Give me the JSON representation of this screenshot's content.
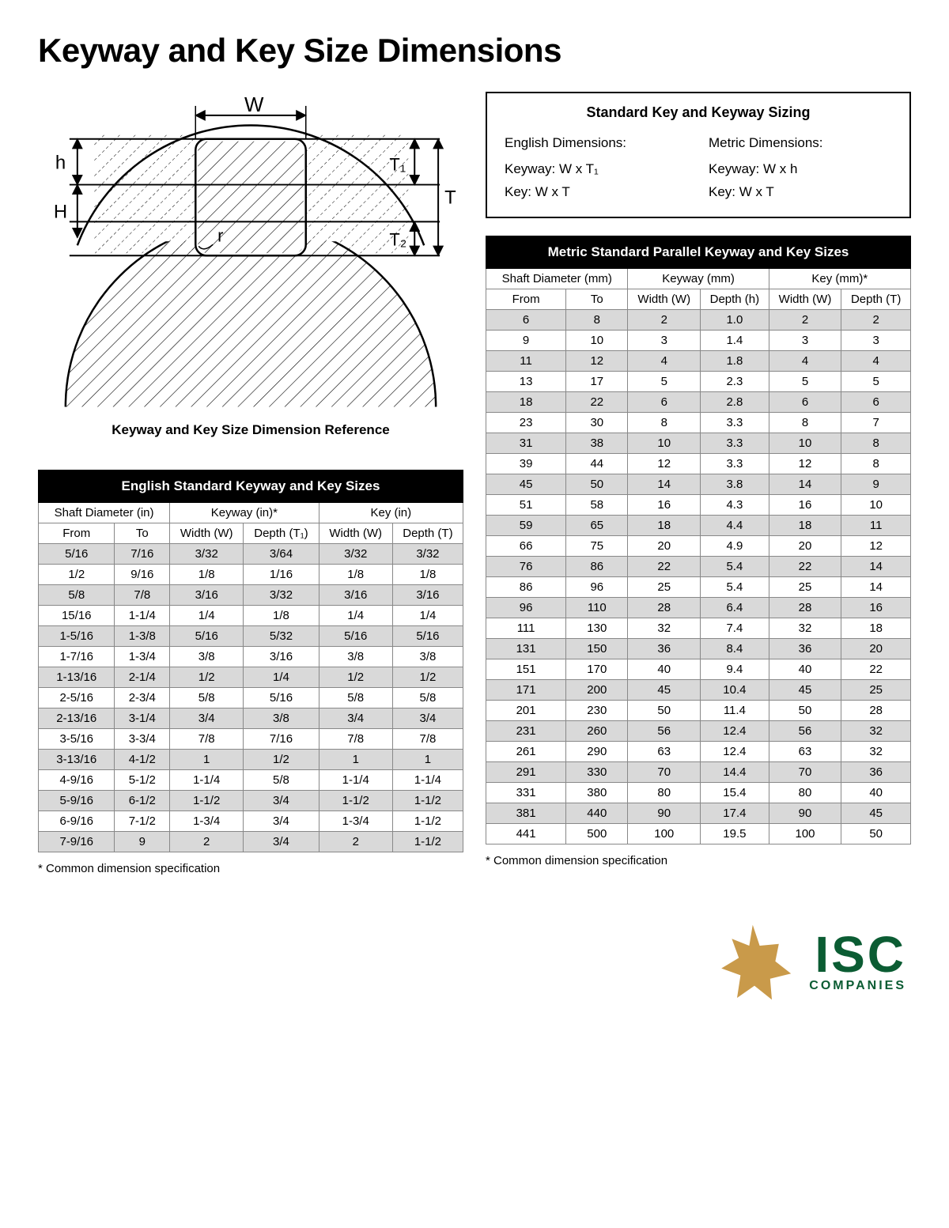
{
  "title": "Keyway and Key Size Dimensions",
  "diagram": {
    "caption": "Keyway and Key Size Dimension Reference",
    "labels": {
      "W": "W",
      "h": "h",
      "H": "H",
      "r": "r",
      "T1": "T₁",
      "T2": "T₂",
      "T": "T"
    },
    "styling": {
      "stroke": "#000000",
      "stroke_width": 2,
      "hatch_color": "#000000",
      "background": "#ffffff"
    }
  },
  "sizing_box": {
    "title": "Standard Key and Keyway Sizing",
    "english": {
      "head": "English Dimensions:",
      "keyway": "Keyway: W x T₁",
      "key": "Key: W x T"
    },
    "metric": {
      "head": "Metric Dimensions:",
      "keyway": "Keyway: W x h",
      "key": "Key: W x T"
    }
  },
  "english_table": {
    "title": "English Standard Keyway and Key Sizes",
    "group_headers": [
      "Shaft Diameter (in)",
      "Keyway (in)*",
      "Key (in)"
    ],
    "sub_headers": [
      "From",
      "To",
      "Width (W)",
      "Depth (T₁)",
      "Width (W)",
      "Depth (T)"
    ],
    "rows": [
      [
        "5/16",
        "7/16",
        "3/32",
        "3/64",
        "3/32",
        "3/32"
      ],
      [
        "1/2",
        "9/16",
        "1/8",
        "1/16",
        "1/8",
        "1/8"
      ],
      [
        "5/8",
        "7/8",
        "3/16",
        "3/32",
        "3/16",
        "3/16"
      ],
      [
        "15/16",
        "1-1/4",
        "1/4",
        "1/8",
        "1/4",
        "1/4"
      ],
      [
        "1-5/16",
        "1-3/8",
        "5/16",
        "5/32",
        "5/16",
        "5/16"
      ],
      [
        "1-7/16",
        "1-3/4",
        "3/8",
        "3/16",
        "3/8",
        "3/8"
      ],
      [
        "1-13/16",
        "2-1/4",
        "1/2",
        "1/4",
        "1/2",
        "1/2"
      ],
      [
        "2-5/16",
        "2-3/4",
        "5/8",
        "5/16",
        "5/8",
        "5/8"
      ],
      [
        "2-13/16",
        "3-1/4",
        "3/4",
        "3/8",
        "3/4",
        "3/4"
      ],
      [
        "3-5/16",
        "3-3/4",
        "7/8",
        "7/16",
        "7/8",
        "7/8"
      ],
      [
        "3-13/16",
        "4-1/2",
        "1",
        "1/2",
        "1",
        "1"
      ],
      [
        "4-9/16",
        "5-1/2",
        "1-1/4",
        "5/8",
        "1-1/4",
        "1-1/4"
      ],
      [
        "5-9/16",
        "6-1/2",
        "1-1/2",
        "3/4",
        "1-1/2",
        "1-1/2"
      ],
      [
        "6-9/16",
        "7-1/2",
        "1-3/4",
        "3/4",
        "1-3/4",
        "1-1/2"
      ],
      [
        "7-9/16",
        "9",
        "2",
        "3/4",
        "2",
        "1-1/2"
      ]
    ],
    "row_shade_color": "#d9d9d9",
    "header_bg": "#000000",
    "header_fg": "#ffffff"
  },
  "metric_table": {
    "title": "Metric Standard Parallel Keyway and Key Sizes",
    "group_headers": [
      "Shaft Diameter (mm)",
      "Keyway (mm)",
      "Key (mm)*"
    ],
    "sub_headers": [
      "From",
      "To",
      "Width (W)",
      "Depth (h)",
      "Width (W)",
      "Depth (T)"
    ],
    "rows": [
      [
        "6",
        "8",
        "2",
        "1.0",
        "2",
        "2"
      ],
      [
        "9",
        "10",
        "3",
        "1.4",
        "3",
        "3"
      ],
      [
        "11",
        "12",
        "4",
        "1.8",
        "4",
        "4"
      ],
      [
        "13",
        "17",
        "5",
        "2.3",
        "5",
        "5"
      ],
      [
        "18",
        "22",
        "6",
        "2.8",
        "6",
        "6"
      ],
      [
        "23",
        "30",
        "8",
        "3.3",
        "8",
        "7"
      ],
      [
        "31",
        "38",
        "10",
        "3.3",
        "10",
        "8"
      ],
      [
        "39",
        "44",
        "12",
        "3.3",
        "12",
        "8"
      ],
      [
        "45",
        "50",
        "14",
        "3.8",
        "14",
        "9"
      ],
      [
        "51",
        "58",
        "16",
        "4.3",
        "16",
        "10"
      ],
      [
        "59",
        "65",
        "18",
        "4.4",
        "18",
        "11"
      ],
      [
        "66",
        "75",
        "20",
        "4.9",
        "20",
        "12"
      ],
      [
        "76",
        "86",
        "22",
        "5.4",
        "22",
        "14"
      ],
      [
        "86",
        "96",
        "25",
        "5.4",
        "25",
        "14"
      ],
      [
        "96",
        "110",
        "28",
        "6.4",
        "28",
        "16"
      ],
      [
        "111",
        "130",
        "32",
        "7.4",
        "32",
        "18"
      ],
      [
        "131",
        "150",
        "36",
        "8.4",
        "36",
        "20"
      ],
      [
        "151",
        "170",
        "40",
        "9.4",
        "40",
        "22"
      ],
      [
        "171",
        "200",
        "45",
        "10.4",
        "45",
        "25"
      ],
      [
        "201",
        "230",
        "50",
        "11.4",
        "50",
        "28"
      ],
      [
        "231",
        "260",
        "56",
        "12.4",
        "56",
        "32"
      ],
      [
        "261",
        "290",
        "63",
        "12.4",
        "63",
        "32"
      ],
      [
        "291",
        "330",
        "70",
        "14.4",
        "70",
        "36"
      ],
      [
        "331",
        "380",
        "80",
        "15.4",
        "80",
        "40"
      ],
      [
        "381",
        "440",
        "90",
        "17.4",
        "90",
        "45"
      ],
      [
        "441",
        "500",
        "100",
        "19.5",
        "100",
        "50"
      ]
    ],
    "row_shade_color": "#d9d9d9",
    "header_bg": "#000000",
    "header_fg": "#ffffff"
  },
  "footnote": "* Common dimension specification",
  "logo": {
    "name": "ISC",
    "sub": "COMPANIES",
    "text_color": "#0b5c33",
    "shape_color": "#c99a4a"
  }
}
